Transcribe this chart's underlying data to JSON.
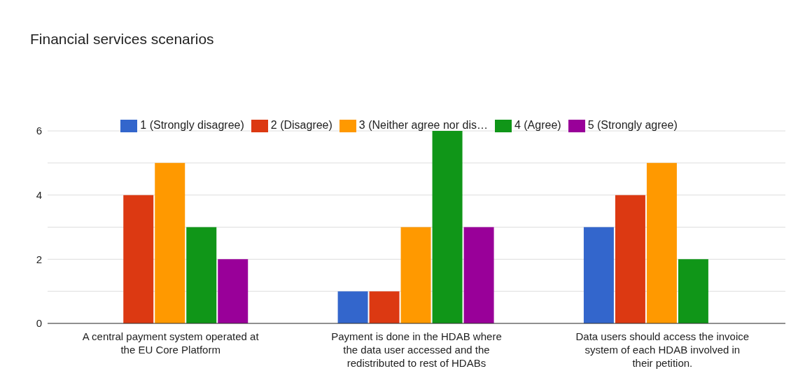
{
  "chart_data": {
    "type": "bar",
    "title": "Financial services scenarios",
    "categories": [
      "A central payment system operated at the EU Core Platform",
      "Payment is done in the HDAB where the data user accessed and the redistributed to rest of HDABs",
      "Data users should access the invoice system of each HDAB involved in their petition."
    ],
    "series": [
      {
        "name": "1 (Strongly disagree)",
        "color": "#3366cc",
        "values": [
          0,
          1,
          3
        ]
      },
      {
        "name": "2 (Disagree)",
        "color": "#dc3912",
        "values": [
          4,
          1,
          4
        ]
      },
      {
        "name": "3 (Neither agree nor dis…",
        "color": "#ff9900",
        "values": [
          5,
          3,
          5
        ]
      },
      {
        "name": "4 (Agree)",
        "color": "#109618",
        "values": [
          3,
          6,
          2
        ]
      },
      {
        "name": "5 (Strongly agree)",
        "color": "#990099",
        "values": [
          2,
          3,
          0
        ]
      }
    ],
    "ylim": [
      0,
      6
    ],
    "yticks": [
      0,
      {
        "value": 1,
        "label": null
      },
      2,
      {
        "value": 3,
        "label": null
      },
      4,
      {
        "value": 5,
        "label": null
      },
      6
    ],
    "grid": "y",
    "legend": "top"
  }
}
